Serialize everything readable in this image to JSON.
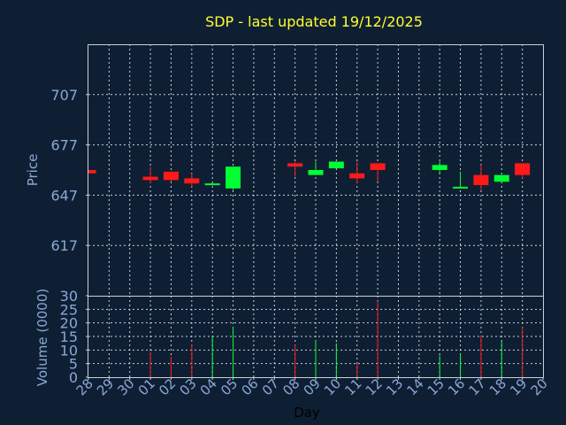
{
  "colors": {
    "background": "#0f1f33",
    "up": "#00ff33",
    "down": "#ff1a1a",
    "title": "#ffff33",
    "tick": "#8aa8d6",
    "grid": "#c8d0dc"
  },
  "chart_data": [
    {
      "type": "candlestick",
      "title": "SDP - last updated 19/12/2025",
      "ylabel": "Price",
      "ylim": [
        587,
        737
      ],
      "yticks": [
        617,
        647,
        677,
        707
      ],
      "grid": true,
      "categories": [
        "28",
        "29",
        "30",
        "01",
        "02",
        "03",
        "04",
        "05",
        "06",
        "07",
        "08",
        "09",
        "10",
        "11",
        "12",
        "13",
        "14",
        "15",
        "16",
        "17",
        "18",
        "19",
        "20"
      ],
      "candles": [
        {
          "x": "28",
          "open": 662,
          "close": 660,
          "high": 662,
          "low": 660
        },
        {
          "x": "01",
          "open": 658,
          "close": 656,
          "high": 664,
          "low": 654
        },
        {
          "x": "02",
          "open": 661,
          "close": 656,
          "high": 661,
          "low": 655
        },
        {
          "x": "03",
          "open": 657,
          "close": 654,
          "high": 660,
          "low": 652
        },
        {
          "x": "04",
          "open": 653,
          "close": 654,
          "high": 654,
          "low": 653
        },
        {
          "x": "05",
          "open": 651,
          "close": 664,
          "high": 664,
          "low": 650
        },
        {
          "x": "08",
          "open": 666,
          "close": 664,
          "high": 667,
          "low": 658
        },
        {
          "x": "09",
          "open": 659,
          "close": 662,
          "high": 667,
          "low": 659
        },
        {
          "x": "10",
          "open": 663,
          "close": 667,
          "high": 667,
          "low": 663
        },
        {
          "x": "11",
          "open": 660,
          "close": 657,
          "high": 667,
          "low": 654
        },
        {
          "x": "12",
          "open": 666,
          "close": 662,
          "high": 666,
          "low": 655
        },
        {
          "x": "15",
          "open": 662,
          "close": 665,
          "high": 667,
          "low": 660
        },
        {
          "x": "16",
          "open": 651,
          "close": 652,
          "high": 661,
          "low": 651
        },
        {
          "x": "17",
          "open": 659,
          "close": 653,
          "high": 665,
          "low": 650
        },
        {
          "x": "18",
          "open": 655,
          "close": 659,
          "high": 659,
          "low": 654
        },
        {
          "x": "19",
          "open": 666,
          "close": 659,
          "high": 666,
          "low": 657
        }
      ]
    },
    {
      "type": "bar",
      "ylabel": "Volume (0000)",
      "xlabel": "Day",
      "ylim": [
        0,
        30
      ],
      "yticks": [
        0,
        5,
        10,
        15,
        20,
        25,
        30
      ],
      "grid": true,
      "categories": [
        "28",
        "29",
        "30",
        "01",
        "02",
        "03",
        "04",
        "05",
        "06",
        "07",
        "08",
        "09",
        "10",
        "11",
        "12",
        "13",
        "14",
        "15",
        "16",
        "17",
        "18",
        "19",
        "20"
      ],
      "bars": [
        {
          "x": "01",
          "value": 9.5,
          "direction": "down"
        },
        {
          "x": "02",
          "value": 7.5,
          "direction": "down"
        },
        {
          "x": "03",
          "value": 12,
          "direction": "down"
        },
        {
          "x": "04",
          "value": 15,
          "direction": "up"
        },
        {
          "x": "05",
          "value": 18.5,
          "direction": "up"
        },
        {
          "x": "08",
          "value": 12,
          "direction": "down"
        },
        {
          "x": "09",
          "value": 13.5,
          "direction": "up"
        },
        {
          "x": "10",
          "value": 12.5,
          "direction": "up"
        },
        {
          "x": "11",
          "value": 5,
          "direction": "down"
        },
        {
          "x": "12",
          "value": 28,
          "direction": "down"
        },
        {
          "x": "15",
          "value": 8,
          "direction": "up"
        },
        {
          "x": "16",
          "value": 8.5,
          "direction": "up"
        },
        {
          "x": "17",
          "value": 15.5,
          "direction": "down"
        },
        {
          "x": "18",
          "value": 13.5,
          "direction": "up"
        },
        {
          "x": "19",
          "value": 18.5,
          "direction": "down"
        }
      ]
    }
  ]
}
